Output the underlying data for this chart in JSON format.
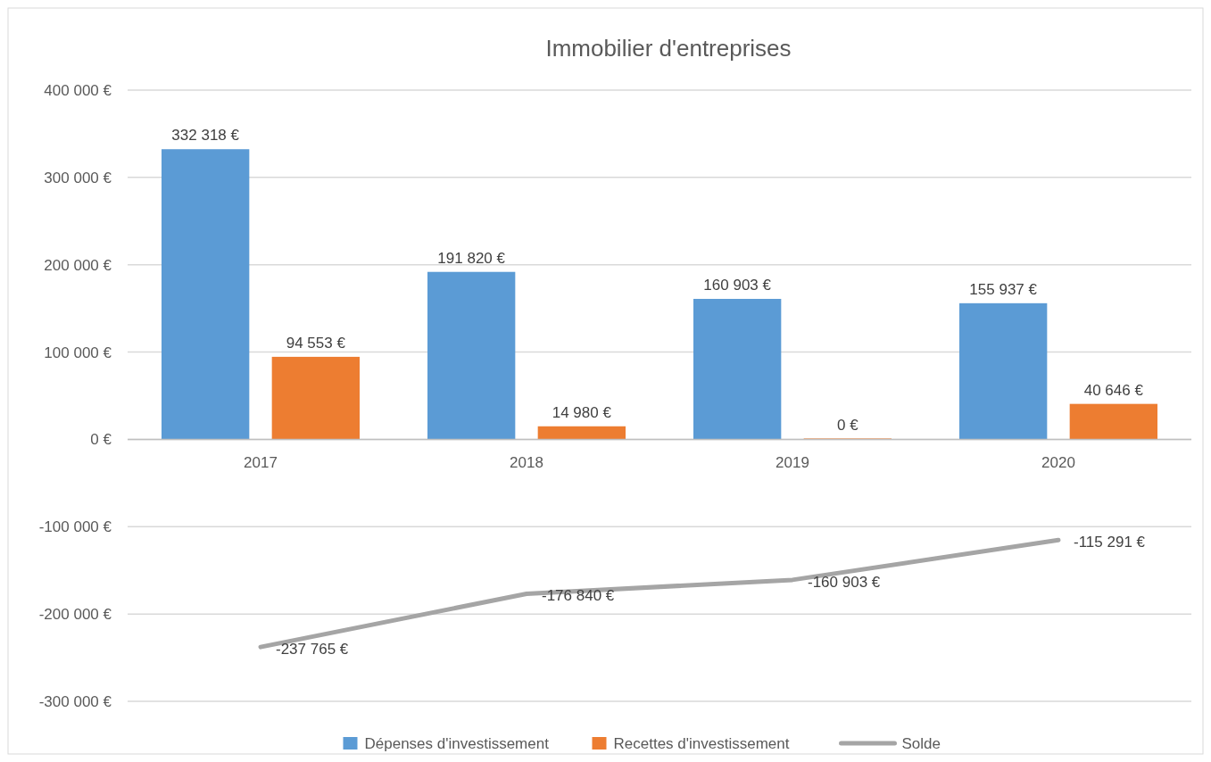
{
  "chart_data": {
    "type": "bar",
    "title": "Immobilier d'entreprises",
    "categories": [
      "2017",
      "2018",
      "2019",
      "2020"
    ],
    "series": [
      {
        "name": "Dépenses d'investissement",
        "color": "#5b9bd5",
        "values": [
          332318,
          191820,
          160903,
          155937
        ],
        "value_labels": [
          "332 318 €",
          "191 820 €",
          "160 903 €",
          "155 937 €"
        ]
      },
      {
        "name": "Recettes d'investissement",
        "color": "#ed7d31",
        "values": [
          94553,
          14980,
          0,
          40646
        ],
        "value_labels": [
          "94 553 €",
          "14 980 €",
          "0 €",
          "40 646 €"
        ]
      },
      {
        "name": "Solde",
        "type": "line",
        "color": "#a5a5a5",
        "values": [
          -237765,
          -176840,
          -160903,
          -115291
        ],
        "value_labels": [
          "-237 765 €",
          "-176 840 €",
          "-160 903 €",
          "-115 291 €"
        ]
      }
    ],
    "ylim": [
      -300000,
      400000
    ],
    "yticks": [
      {
        "value": -300000,
        "label": "-300 000 €"
      },
      {
        "value": -200000,
        "label": "-200 000 €"
      },
      {
        "value": -100000,
        "label": "-100 000 €"
      },
      {
        "value": 0,
        "label": "0 €"
      },
      {
        "value": 100000,
        "label": "100 000 €"
      },
      {
        "value": 200000,
        "label": "200 000 €"
      },
      {
        "value": 300000,
        "label": "300 000 €"
      },
      {
        "value": 400000,
        "label": "400 000 €"
      }
    ],
    "grid": "y",
    "legend": "bottom",
    "marker": "none",
    "line_style": "solid"
  }
}
